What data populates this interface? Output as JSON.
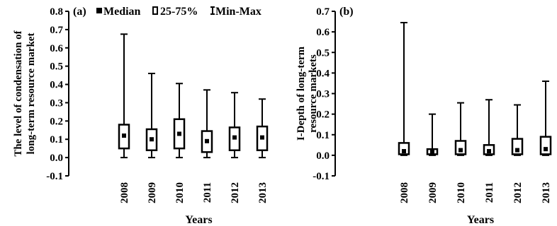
{
  "legend": {
    "median": "Median",
    "iqr": "25-75%",
    "range": "Min-Max"
  },
  "chart_data": [
    {
      "type": "boxplot",
      "panel_label": "(a)",
      "ylabel_lines": [
        "The level of condensation of",
        "long-term resource market"
      ],
      "xlabel": "Years",
      "ylim": [
        -0.1,
        0.8
      ],
      "yticks": [
        "-0.1",
        "0.0",
        "0.1",
        "0.2",
        "0.3",
        "0.4",
        "0.5",
        "0.6",
        "0.7",
        "0.8"
      ],
      "categories": [
        "2008",
        "2009",
        "2010",
        "2011",
        "2012",
        "2013"
      ],
      "min": [
        0.0,
        0.0,
        0.0,
        0.0,
        0.0,
        0.0
      ],
      "q1": [
        0.05,
        0.04,
        0.05,
        0.03,
        0.04,
        0.04
      ],
      "median": [
        0.12,
        0.1,
        0.13,
        0.09,
        0.11,
        0.11
      ],
      "q3": [
        0.18,
        0.155,
        0.21,
        0.145,
        0.165,
        0.17
      ],
      "max": [
        0.675,
        0.46,
        0.405,
        0.37,
        0.355,
        0.32
      ],
      "legend": "top"
    },
    {
      "type": "boxplot",
      "panel_label": "(b)",
      "ylabel_lines": [
        "I-Depth of long-term",
        "resource markets"
      ],
      "xlabel": "Years",
      "ylim": [
        -0.1,
        0.7
      ],
      "yticks": [
        "-0.1",
        "0.0",
        "0.1",
        "0.2",
        "0.3",
        "0.4",
        "0.5",
        "0.6",
        "0.7"
      ],
      "categories": [
        "2008",
        "2009",
        "2010",
        "2011",
        "2012",
        "2013"
      ],
      "min": [
        0.0,
        0.0,
        0.0,
        0.0,
        0.0,
        0.0
      ],
      "q1": [
        0.005,
        0.005,
        0.005,
        0.005,
        0.005,
        0.005
      ],
      "median": [
        0.02,
        0.018,
        0.025,
        0.02,
        0.025,
        0.03
      ],
      "q3": [
        0.06,
        0.03,
        0.07,
        0.05,
        0.08,
        0.09
      ],
      "max": [
        0.645,
        0.2,
        0.255,
        0.27,
        0.245,
        0.36
      ]
    }
  ]
}
